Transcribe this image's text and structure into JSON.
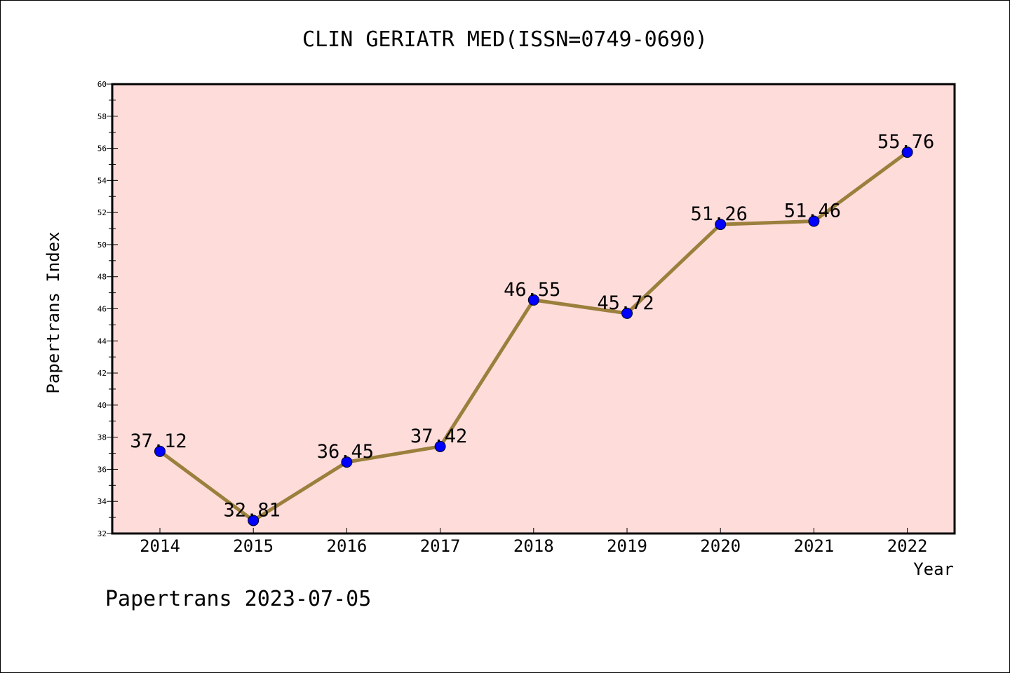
{
  "chart_data": {
    "type": "line",
    "title": "CLIN GERIATR MED(ISSN=0749-0690)",
    "xlabel": "Year",
    "ylabel": "Papertrans Index",
    "categories": [
      "2014",
      "2015",
      "2016",
      "2017",
      "2018",
      "2019",
      "2020",
      "2021",
      "2022"
    ],
    "series": [
      {
        "values": [
          37.12,
          32.81,
          36.45,
          37.42,
          46.55,
          45.72,
          51.26,
          51.46,
          55.76
        ],
        "labels": [
          "37.12",
          "32.81",
          "36.45",
          "37.42",
          "46.55",
          "45.72",
          "51.26",
          "51.46",
          "55.76"
        ]
      }
    ],
    "ylim": [
      32,
      60
    ],
    "yticks": [
      "32",
      "34",
      "36",
      "38",
      "40",
      "42",
      "44",
      "46",
      "48",
      "50",
      "52",
      "54",
      "56",
      "58",
      "60"
    ],
    "grid": false,
    "legend": "none",
    "colors": {
      "plot_background": "#fddcda",
      "line": "#9b7f3c",
      "marker": "#0000ff"
    }
  },
  "footer": "Papertrans 2023-07-05"
}
